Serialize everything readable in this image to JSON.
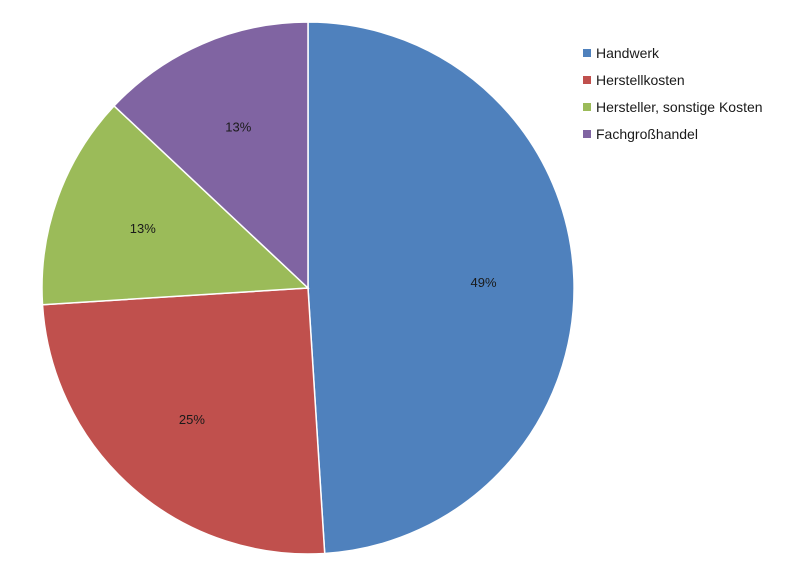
{
  "chart_data": {
    "type": "pie",
    "categories": [
      "Handwerk",
      "Herstellkosten",
      "Hersteller, sonstige Kosten",
      "Fachgroßhandel"
    ],
    "values": [
      49,
      25,
      13,
      13
    ],
    "data_labels": [
      "49%",
      "25%",
      "13%",
      "13%"
    ],
    "colors": [
      "#4f81bd",
      "#c0504d",
      "#9bbb59",
      "#8064a2"
    ],
    "start_angle_deg": 0,
    "direction": "clockwise",
    "legend_placement": "right"
  }
}
